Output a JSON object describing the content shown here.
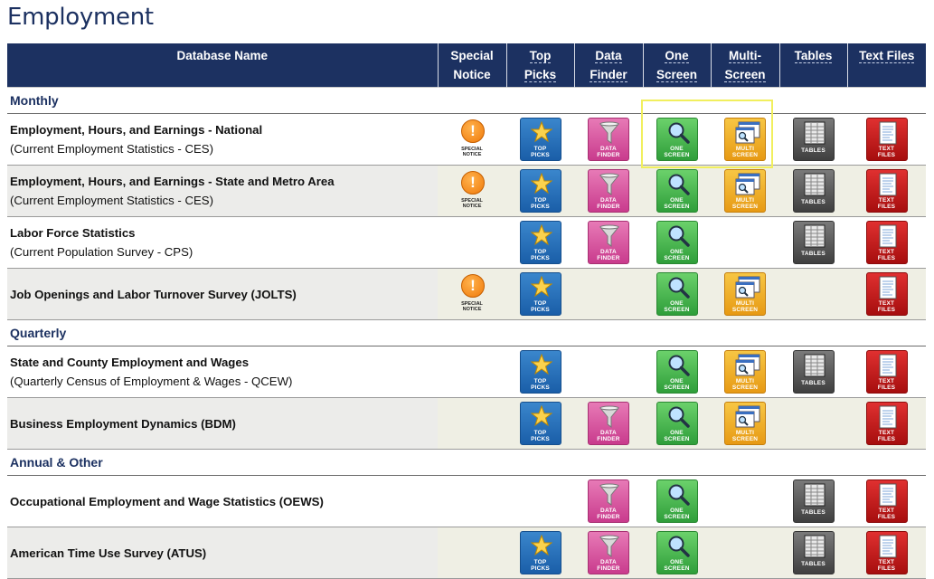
{
  "page": {
    "title": "Employment"
  },
  "headers": {
    "name": "Database Name",
    "special_1": "Special",
    "special_2": "Notice",
    "top_1": "Top",
    "top_2": "Picks",
    "data_1": "Data",
    "data_2": "Finder",
    "one_1": "One",
    "one_2": "Screen",
    "multi_1": "Multi-",
    "multi_2": "Screen",
    "tables": "Tables",
    "text_files": "Text Files"
  },
  "icon_labels": {
    "notice_1": "SPECIAL",
    "notice_2": "NOTICE",
    "top_1": "TOP",
    "top_2": "PICKS",
    "df_1": "DATA",
    "df_2": "FINDER",
    "one_1": "ONE",
    "one_2": "SCREEN",
    "multi_1": "MULTI",
    "multi_2": "SCREEN",
    "tables": "TABLES",
    "txt_1": "TEXT",
    "txt_2": "FILES",
    "notice_glyph": "!"
  },
  "sections": {
    "monthly": "Monthly",
    "quarterly": "Quarterly",
    "annual": "Annual & Other"
  },
  "rows": [
    {
      "title": "Employment, Hours, and Earnings - National",
      "subtitle": "(Current Employment Statistics - CES)"
    },
    {
      "title": "Employment, Hours, and Earnings - State and Metro Area",
      "subtitle": "(Current Employment Statistics - CES)"
    },
    {
      "title": "Labor Force Statistics",
      "subtitle": "(Current Population Survey - CPS)"
    },
    {
      "title": "Job Openings and Labor Turnover Survey (JOLTS)",
      "subtitle": ""
    },
    {
      "title": "State and County Employment and Wages",
      "subtitle": "(Quarterly Census of Employment & Wages - QCEW)"
    },
    {
      "title": "Business Employment Dynamics (BDM)",
      "subtitle": ""
    },
    {
      "title": "Occupational Employment and Wage Statistics (OEWS)",
      "subtitle": ""
    },
    {
      "title": "American Time Use Survey (ATUS)",
      "subtitle": ""
    }
  ],
  "colors": {
    "header_bg": "#1c3161",
    "title": "#1c3161",
    "highlight": "#f1ef5e"
  }
}
